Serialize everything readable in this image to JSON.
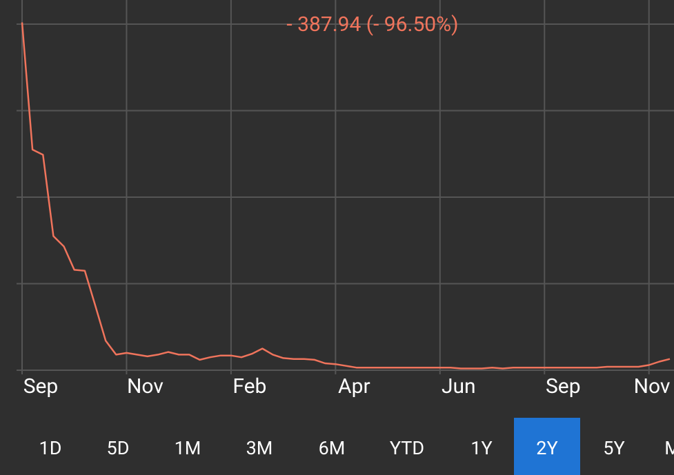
{
  "chart_data": {
    "type": "line",
    "title": "- 387.94 (- 96.50%)",
    "categories": [
      "Sep",
      null,
      null,
      null,
      null,
      null,
      null,
      null,
      null,
      null,
      "Nov",
      null,
      null,
      null,
      null,
      null,
      null,
      null,
      null,
      null,
      "Feb",
      null,
      null,
      null,
      null,
      null,
      null,
      null,
      null,
      null,
      "Apr",
      null,
      null,
      null,
      null,
      null,
      null,
      null,
      null,
      null,
      "Jun",
      null,
      null,
      null,
      null,
      null,
      null,
      null,
      null,
      null,
      "Sep",
      null,
      null,
      null,
      null,
      null,
      null,
      null,
      null,
      null,
      "Nov",
      null,
      null
    ],
    "values": [
      402,
      255,
      249,
      155,
      143,
      116,
      115,
      75,
      34,
      18,
      20,
      18,
      16,
      18,
      21,
      18,
      18,
      12,
      15,
      17,
      17,
      15,
      19,
      25,
      18,
      14,
      13,
      13,
      12,
      8,
      7,
      5,
      3,
      3,
      3,
      3,
      3,
      3,
      3,
      3,
      3,
      3,
      2,
      2,
      2,
      3,
      2,
      3,
      3,
      3,
      3,
      3,
      3,
      3,
      3,
      3,
      4,
      4,
      4,
      4,
      6,
      10,
      13
    ],
    "color": "#f0745c",
    "ylim": [
      0,
      400
    ],
    "yticks": [
      0,
      100,
      200,
      300,
      400
    ],
    "grid": true
  },
  "range_buttons": {
    "options": [
      "1D",
      "5D",
      "1M",
      "3M",
      "6M",
      "YTD",
      "1Y",
      "2Y",
      "5Y",
      "M"
    ],
    "selected_index": 7
  }
}
